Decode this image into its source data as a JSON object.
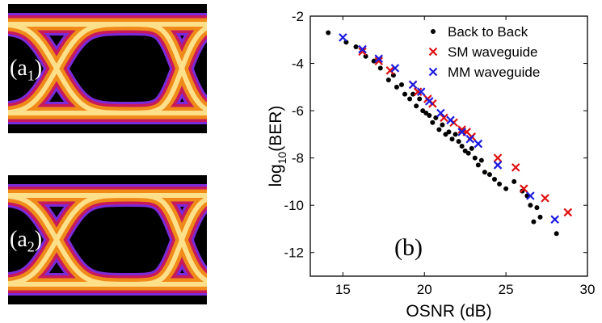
{
  "eye_diagrams": [
    {
      "label_main": "(a",
      "label_sub": "1",
      "label_close": ")"
    },
    {
      "label_main": "(a",
      "label_sub": "2",
      "label_close": ")"
    }
  ],
  "colors": {
    "back_to_back": "#000000",
    "sm_waveguide": "#e01010",
    "mm_waveguide": "#1a1ae0",
    "eye_core": "#ffe08a",
    "eye_mid": "#f08a18",
    "eye_outer": "#c81a5a",
    "eye_edge": "#7a2ad8"
  },
  "chart_data": {
    "type": "scatter",
    "panel_label": "(b)",
    "xlabel": "OSNR (dB)",
    "ylabel_main": "log",
    "ylabel_sub": "10",
    "ylabel_rest": "(BER)",
    "xlim": [
      13,
      30
    ],
    "ylim": [
      -13,
      -2
    ],
    "xticks": [
      "15",
      "20",
      "25",
      "30"
    ],
    "yticks": [
      "-2",
      "-4",
      "-6",
      "-8",
      "-10",
      "-12"
    ],
    "xtick_values": [
      15,
      20,
      25,
      30
    ],
    "ytick_values": [
      -2,
      -4,
      -6,
      -8,
      -10,
      -12
    ],
    "grid": false,
    "legend_position": "top-right",
    "series": [
      {
        "name": "Back to Back",
        "marker": "dot",
        "points": [
          [
            14.1,
            -2.7
          ],
          [
            15.2,
            -3.1
          ],
          [
            15.8,
            -3.3
          ],
          [
            16.4,
            -3.7
          ],
          [
            16.9,
            -3.9
          ],
          [
            17.3,
            -4.2
          ],
          [
            17.8,
            -4.7
          ],
          [
            18.1,
            -4.5
          ],
          [
            18.3,
            -5.0
          ],
          [
            18.6,
            -4.9
          ],
          [
            18.8,
            -5.3
          ],
          [
            19.1,
            -5.5
          ],
          [
            19.3,
            -5.3
          ],
          [
            19.5,
            -5.8
          ],
          [
            19.7,
            -5.5
          ],
          [
            19.9,
            -6.0
          ],
          [
            20.1,
            -6.1
          ],
          [
            20.3,
            -6.2
          ],
          [
            20.5,
            -6.5
          ],
          [
            20.7,
            -6.3
          ],
          [
            20.9,
            -6.8
          ],
          [
            21.1,
            -6.6
          ],
          [
            21.3,
            -7.0
          ],
          [
            21.5,
            -6.9
          ],
          [
            21.7,
            -7.2
          ],
          [
            21.9,
            -7.0
          ],
          [
            22.1,
            -7.3
          ],
          [
            22.3,
            -7.5
          ],
          [
            22.5,
            -7.7
          ],
          [
            22.7,
            -7.8
          ],
          [
            22.9,
            -7.6
          ],
          [
            23.1,
            -8.0
          ],
          [
            23.3,
            -8.3
          ],
          [
            23.5,
            -8.1
          ],
          [
            23.7,
            -8.6
          ],
          [
            24.0,
            -8.7
          ],
          [
            24.3,
            -8.9
          ],
          [
            24.6,
            -9.1
          ],
          [
            25.0,
            -9.3
          ],
          [
            25.5,
            -9.0
          ],
          [
            26.0,
            -9.4
          ],
          [
            26.3,
            -9.6
          ],
          [
            26.5,
            -10.0
          ],
          [
            26.7,
            -10.7
          ],
          [
            26.9,
            -10.1
          ],
          [
            27.1,
            -10.5
          ],
          [
            28.1,
            -11.2
          ]
        ]
      },
      {
        "name": "SM waveguide",
        "marker": "x",
        "points": [
          [
            16.2,
            -3.5
          ],
          [
            17.2,
            -3.9
          ],
          [
            17.9,
            -4.3
          ],
          [
            19.3,
            -4.9
          ],
          [
            19.6,
            -5.2
          ],
          [
            20.2,
            -5.5
          ],
          [
            20.5,
            -5.7
          ],
          [
            21.2,
            -6.3
          ],
          [
            21.8,
            -6.5
          ],
          [
            22.3,
            -6.8
          ],
          [
            22.6,
            -6.9
          ],
          [
            22.9,
            -7.1
          ],
          [
            24.5,
            -8.0
          ],
          [
            25.6,
            -8.4
          ],
          [
            26.1,
            -9.3
          ],
          [
            27.4,
            -9.7
          ],
          [
            28.8,
            -10.3
          ]
        ]
      },
      {
        "name": "MM waveguide",
        "marker": "x",
        "points": [
          [
            15.0,
            -2.9
          ],
          [
            16.2,
            -3.4
          ],
          [
            17.2,
            -3.8
          ],
          [
            18.2,
            -4.2
          ],
          [
            19.3,
            -4.9
          ],
          [
            19.8,
            -5.2
          ],
          [
            20.3,
            -5.6
          ],
          [
            21.0,
            -6.1
          ],
          [
            21.6,
            -6.4
          ],
          [
            22.3,
            -6.9
          ],
          [
            22.8,
            -7.2
          ],
          [
            23.3,
            -7.4
          ],
          [
            24.5,
            -8.3
          ],
          [
            26.5,
            -9.6
          ],
          [
            28.0,
            -10.6
          ]
        ]
      }
    ]
  }
}
